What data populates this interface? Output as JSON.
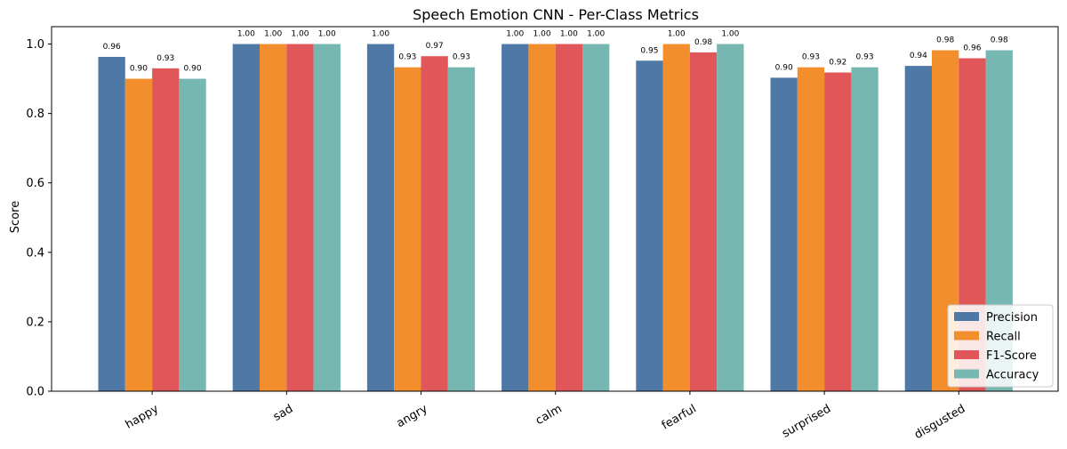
{
  "chart_data": {
    "type": "bar",
    "title": "Speech Emotion CNN - Per-Class Metrics",
    "xlabel": "",
    "ylabel": "Score",
    "ylim": [
      0,
      1.05
    ],
    "yticks": [
      "0.0",
      "0.2",
      "0.4",
      "0.6",
      "0.8",
      "1.0"
    ],
    "categories": [
      "happy",
      "sad",
      "angry",
      "calm",
      "fearful",
      "surprised",
      "disgusted"
    ],
    "series": [
      {
        "name": "Precision",
        "color": "#4e79a7",
        "values": [
          0.963,
          1.0,
          1.0,
          1.0,
          0.952,
          0.903,
          0.937
        ],
        "labels": [
          "0.96",
          "1.00",
          "1.00",
          "1.00",
          "0.95",
          "0.90",
          "0.94"
        ]
      },
      {
        "name": "Recall",
        "color": "#f28e2b",
        "values": [
          0.9,
          1.0,
          0.933,
          1.0,
          1.0,
          0.933,
          0.982
        ],
        "labels": [
          "0.90",
          "1.00",
          "0.93",
          "1.00",
          "1.00",
          "0.93",
          "0.98"
        ]
      },
      {
        "name": "F1-Score",
        "color": "#e15759",
        "values": [
          0.93,
          1.0,
          0.965,
          1.0,
          0.976,
          0.918,
          0.959
        ],
        "labels": [
          "0.93",
          "1.00",
          "0.97",
          "1.00",
          "0.98",
          "0.92",
          "0.96"
        ]
      },
      {
        "name": "Accuracy",
        "color": "#76b7b2",
        "values": [
          0.9,
          1.0,
          0.933,
          1.0,
          1.0,
          0.933,
          0.982
        ],
        "labels": [
          "0.90",
          "1.00",
          "0.93",
          "1.00",
          "1.00",
          "0.93",
          "0.98"
        ]
      }
    ],
    "legend": "lower-right",
    "grid": false
  }
}
